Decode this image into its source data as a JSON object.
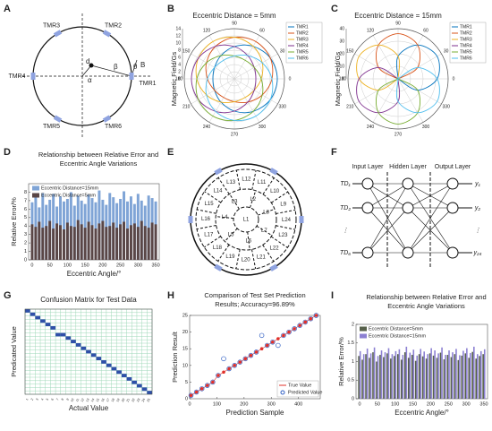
{
  "panel_labels": [
    "A",
    "B",
    "C",
    "D",
    "E",
    "F",
    "G",
    "H",
    "I"
  ],
  "diagram_a": {
    "sensors": [
      "TMR1",
      "TMR2",
      "TMR3",
      "TMR4",
      "TMR5",
      "TMR6"
    ],
    "symbols": [
      "d",
      "α",
      "β",
      "θ",
      "B"
    ]
  },
  "diagram_e": {
    "regions": [
      "L1",
      "L2",
      "L3",
      "L4",
      "L5",
      "L6",
      "L7",
      "L8",
      "L9",
      "L10",
      "L11",
      "L12",
      "L13",
      "L14",
      "L15",
      "L16",
      "L17",
      "L18",
      "L19",
      "L20",
      "L21",
      "L22",
      "L23",
      "L24"
    ]
  },
  "diagram_f": {
    "layers": [
      "Input Layer",
      "Hidden Layer",
      "Output Layer"
    ],
    "inputs": [
      "TD₁",
      "TD₂",
      "⋮",
      "TD₆"
    ],
    "outputs": [
      "y₁",
      "y₂",
      "⋮",
      "y₂₄"
    ]
  },
  "chart_data": [
    {
      "type": "polar",
      "title": "Eccentric Distance = 5mm",
      "ylabel": "Magnetic Field/Gs",
      "theta": [
        0,
        30,
        60,
        90,
        120,
        150,
        180,
        210,
        240,
        270,
        300,
        330
      ],
      "rlim": [
        0,
        14
      ],
      "rticks": [
        0,
        2,
        4,
        6,
        8,
        10,
        12,
        14
      ],
      "series": [
        {
          "name": "TMR1",
          "color": "#0072bd",
          "values": [
            12,
            11.6,
            10.5,
            9,
            7.5,
            6.4,
            6,
            6.4,
            7.5,
            9,
            10.5,
            11.6
          ]
        },
        {
          "name": "TMR2",
          "color": "#d95319",
          "values": [
            10.5,
            11.6,
            12,
            11.6,
            10.5,
            9,
            7.5,
            6.4,
            6,
            6.4,
            7.5,
            9
          ]
        },
        {
          "name": "TMR3",
          "color": "#edb120",
          "values": [
            7.5,
            9,
            10.5,
            11.6,
            12,
            11.6,
            10.5,
            9,
            7.5,
            6.4,
            6,
            6.4
          ]
        },
        {
          "name": "TMR4",
          "color": "#7e2f8e",
          "values": [
            6,
            6.4,
            7.5,
            9,
            10.5,
            11.6,
            12,
            11.6,
            10.5,
            9,
            7.5,
            6.4
          ]
        },
        {
          "name": "TMR5",
          "color": "#77ac30",
          "values": [
            7.5,
            6.4,
            6,
            6.4,
            7.5,
            9,
            10.5,
            11.6,
            12,
            11.6,
            10.5,
            9
          ]
        },
        {
          "name": "TMR6",
          "color": "#4dbeee",
          "values": [
            10.5,
            9,
            7.5,
            6.4,
            6,
            6.4,
            7.5,
            9,
            10.5,
            11.6,
            12,
            11.6
          ]
        }
      ]
    },
    {
      "type": "polar",
      "title": "Eccentric Distance = 15mm",
      "ylabel": "Magnetic Field/Gs",
      "theta": [
        0,
        30,
        60,
        90,
        120,
        150,
        180,
        210,
        240,
        270,
        300,
        330
      ],
      "rlim": [
        0,
        40
      ],
      "rticks": [
        0,
        10,
        20,
        30,
        40
      ],
      "series": [
        {
          "name": "TMR1",
          "color": "#0072bd",
          "values": [
            31.2,
            36,
            31.2,
            18,
            0,
            0,
            0,
            0,
            0,
            0,
            0,
            18
          ]
        },
        {
          "name": "TMR2",
          "color": "#d95319",
          "values": [
            0,
            18,
            31.2,
            36,
            31.2,
            18,
            0,
            0,
            0,
            0,
            0,
            0
          ]
        },
        {
          "name": "TMR3",
          "color": "#edb120",
          "values": [
            0,
            0,
            0,
            18,
            31.2,
            36,
            31.2,
            18,
            0,
            0,
            0,
            0
          ]
        },
        {
          "name": "TMR4",
          "color": "#7e2f8e",
          "values": [
            0,
            0,
            0,
            0,
            0,
            18,
            31.2,
            36,
            31.2,
            18,
            0,
            0
          ]
        },
        {
          "name": "TMR5",
          "color": "#77ac30",
          "values": [
            0,
            0,
            0,
            0,
            0,
            0,
            0,
            18,
            31.2,
            36,
            31.2,
            18
          ]
        },
        {
          "name": "TMR6",
          "color": "#4dbeee",
          "values": [
            31.2,
            18,
            0,
            0,
            0,
            0,
            0,
            0,
            0,
            18,
            31.2,
            36
          ]
        }
      ]
    },
    {
      "type": "bar",
      "mode": "overlap",
      "title": [
        "Relationship between Relative Error and",
        "Eccentric Angle Variations"
      ],
      "xlabel": "Eccentric Angle/°",
      "ylabel": "Relative Error/%",
      "x": [
        0,
        10,
        20,
        30,
        40,
        50,
        60,
        70,
        80,
        90,
        100,
        110,
        120,
        130,
        140,
        150,
        160,
        170,
        180,
        190,
        200,
        210,
        220,
        230,
        240,
        250,
        260,
        270,
        280,
        290,
        300,
        310,
        320,
        330,
        340,
        350
      ],
      "xlim": [
        -10,
        360
      ],
      "xticks": [
        0,
        50,
        100,
        150,
        200,
        250,
        300,
        350
      ],
      "ylim": [
        0,
        9
      ],
      "yticks": [
        0,
        1,
        2,
        3,
        4,
        5,
        6,
        7,
        8
      ],
      "series": [
        {
          "name": "Eccentric Distance=15mm",
          "color": "#7fa4d6",
          "values": [
            6.8,
            7.4,
            6.2,
            7.9,
            6.5,
            7.1,
            7.8,
            6.3,
            7.5,
            6.9,
            7.2,
            8.0,
            6.4,
            7.6,
            7.0,
            6.6,
            7.7,
            7.3,
            6.8,
            8.2,
            7.1,
            6.5,
            7.9,
            7.4,
            6.7,
            7.2,
            8.1,
            6.9,
            7.5,
            6.6,
            7.8,
            7.0,
            6.4,
            7.6,
            7.3,
            6.9
          ]
        },
        {
          "name": "Eccentric Distance=5mm",
          "color": "#5a4646",
          "values": [
            4.2,
            3.9,
            4.5,
            3.8,
            4.0,
            4.6,
            3.7,
            4.3,
            4.1,
            3.6,
            4.4,
            4.0,
            3.9,
            4.7,
            4.2,
            3.8,
            4.5,
            4.1,
            3.7,
            4.3,
            4.6,
            3.9,
            4.0,
            4.4,
            3.8,
            4.2,
            4.5,
            3.7,
            4.1,
            4.3,
            3.9,
            4.6,
            4.0,
            3.8,
            4.4,
            4.2
          ]
        }
      ]
    },
    {
      "type": "heatmap",
      "title": "Confusion Matrix for Test Data",
      "xlabel": "Actual Value",
      "ylabel": "Predicated Value",
      "color": "#2f4fa8",
      "categories": [
        "1",
        "2",
        "3",
        "4",
        "5",
        "6",
        "7",
        "8",
        "9",
        "10",
        "11",
        "12",
        "13",
        "14",
        "15",
        "16",
        "17",
        "18",
        "19",
        "20",
        "21",
        "22",
        "23",
        "24",
        "25"
      ],
      "predicted": [
        1,
        2,
        3,
        4,
        5,
        6,
        8,
        8,
        9,
        10,
        11,
        12,
        13,
        14,
        15,
        16,
        17,
        18,
        19,
        20,
        21,
        22,
        23,
        24,
        25
      ]
    },
    {
      "type": "scatter",
      "title": [
        "Comparison of Test Set Prediction",
        "Results;    Accuracy=96.89%"
      ],
      "xlabel": "Prediction Sample",
      "ylabel": "Prediction Result",
      "x": [
        5,
        25,
        45,
        65,
        85,
        105,
        125,
        145,
        165,
        185,
        205,
        225,
        245,
        265,
        285,
        305,
        325,
        345,
        365,
        385,
        405,
        425,
        445,
        465
      ],
      "xlim": [
        0,
        480
      ],
      "xticks": [
        0,
        100,
        200,
        300,
        400
      ],
      "ylim": [
        0,
        25
      ],
      "yticks": [
        0,
        5,
        10,
        15,
        20,
        25
      ],
      "series": [
        {
          "name": "True Value",
          "color": "#e0302a",
          "values": [
            1,
            2,
            3,
            4,
            5,
            7,
            8,
            9,
            10,
            11,
            12,
            13,
            14,
            15,
            16,
            17,
            18,
            19,
            20,
            21,
            22,
            23,
            24,
            25
          ]
        },
        {
          "name": "Predicted Value",
          "color": "#2f5ec4",
          "values": [
            1,
            2,
            3,
            4,
            5,
            7,
            12,
            9,
            10,
            11,
            12,
            13,
            14,
            19,
            16,
            17,
            16,
            19,
            20,
            21,
            22,
            23,
            24,
            25
          ]
        }
      ]
    },
    {
      "type": "bar",
      "mode": "group",
      "title": [
        "Relationship between Relative Error and",
        "Eccentric Angle Variations"
      ],
      "xlabel": "Eccentric Angle/°",
      "ylabel": "Relative Error/%",
      "x": [
        0,
        10,
        20,
        30,
        40,
        50,
        60,
        70,
        80,
        90,
        100,
        110,
        120,
        130,
        140,
        150,
        160,
        170,
        180,
        190,
        200,
        210,
        220,
        230,
        240,
        250,
        260,
        270,
        280,
        290,
        300,
        310,
        320,
        330,
        340,
        350
      ],
      "xlim": [
        -10,
        360
      ],
      "xticks": [
        0,
        50,
        100,
        150,
        200,
        250,
        300,
        350
      ],
      "ylim": [
        0,
        2
      ],
      "yticks": [
        0,
        0.5,
        1,
        1.5,
        2
      ],
      "series": [
        {
          "name": "Eccentric Distance=5mm",
          "color": "#56604a",
          "values": [
            1.15,
            1.05,
            1.2,
            1.1,
            1.25,
            1.0,
            1.18,
            1.12,
            1.22,
            1.08,
            1.15,
            1.2,
            1.05,
            1.25,
            1.1,
            1.18,
            1.02,
            1.2,
            1.14,
            1.08,
            1.22,
            1.16,
            1.1,
            1.24,
            1.06,
            1.18,
            1.12,
            1.2,
            1.04,
            1.16,
            1.22,
            1.1,
            1.26,
            1.08,
            1.15,
            1.2
          ]
        },
        {
          "name": "Eccentric Distance=15mm",
          "color": "#8c80d2",
          "values": [
            1.28,
            1.2,
            1.35,
            1.22,
            1.38,
            1.15,
            1.3,
            1.25,
            1.36,
            1.2,
            1.28,
            1.33,
            1.18,
            1.4,
            1.24,
            1.32,
            1.16,
            1.34,
            1.27,
            1.2,
            1.36,
            1.3,
            1.22,
            1.38,
            1.18,
            1.3,
            1.25,
            1.34,
            1.17,
            1.29,
            1.36,
            1.23,
            1.4,
            1.2,
            1.28,
            1.33
          ]
        }
      ]
    }
  ]
}
